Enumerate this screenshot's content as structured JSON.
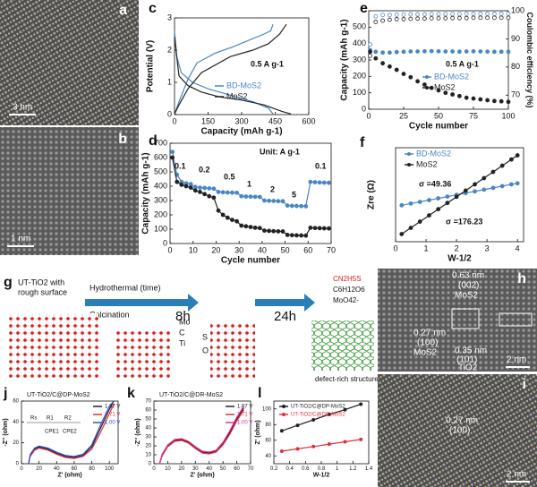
{
  "figure": {
    "panel_labels": [
      "a",
      "b",
      "c",
      "d",
      "e",
      "f",
      "g",
      "h",
      "i",
      "j",
      "k",
      "l"
    ],
    "scale_bars": [
      "3 nm",
      "1 nm",
      "2 nm",
      "2 nm"
    ],
    "schematic": {
      "start": [
        "UT-TiO2 with",
        "rough surface"
      ],
      "step1": "Hydrothermal (time)",
      "step2": "Calcination",
      "t1": "8h",
      "t2": "24h",
      "atoms": [
        "Mo",
        "C",
        "Ti",
        "S",
        "O"
      ],
      "reagents": [
        "CN2H5S",
        "C6H12O6",
        "MoO42-"
      ],
      "result": "defect-rich structure"
    },
    "hrtem_h": [
      "0.63 nm",
      "(002)",
      "MoS2",
      "0.27 nm",
      "(100)",
      "MoS2",
      "0.35 nm",
      "(101)",
      "TiO2"
    ],
    "hrtem_i": [
      "0.27 nm",
      "(100)"
    ],
    "circuit": [
      "Rs",
      "R1",
      "CPE1",
      "R2",
      "CPE2"
    ]
  },
  "chart_data": [
    {
      "type": "line",
      "xlabel": "Capacity (mAh g-1)",
      "ylabel": "Potential (V)",
      "xlim": [
        0,
        600
      ],
      "xticks": [
        0,
        150,
        300,
        450,
        600
      ],
      "ylim": [
        0,
        3
      ],
      "yticks": [
        0,
        1,
        2,
        3
      ],
      "annotations": [
        "0.5 A g-1"
      ],
      "series": [
        {
          "name": "BD-MoS2",
          "color": "#4a86c5",
          "x": [
            0,
            10,
            30,
            80,
            150,
            250,
            350,
            420,
            440,
            null,
            0,
            20,
            60,
            100,
            180,
            260,
            330,
            400,
            430,
            440
          ],
          "values": [
            2.6,
            1.8,
            1.3,
            1.0,
            0.8,
            0.6,
            0.4,
            0.2,
            0.02,
            null,
            0.02,
            0.4,
            1.1,
            1.6,
            1.9,
            2.1,
            2.3,
            2.5,
            2.6,
            2.8
          ]
        },
        {
          "name": "MoS2",
          "color": "#222222",
          "x": [
            0,
            20,
            60,
            120,
            200,
            300,
            400,
            480,
            520,
            null,
            0,
            20,
            60,
            120,
            250,
            350,
            420,
            470,
            500
          ],
          "values": [
            2.4,
            1.2,
            0.9,
            0.7,
            0.55,
            0.45,
            0.3,
            0.1,
            0.02,
            null,
            0.02,
            0.3,
            0.8,
            1.3,
            1.8,
            2.0,
            2.2,
            2.5,
            2.8
          ]
        }
      ]
    },
    {
      "type": "line",
      "xlabel": "Cycle number",
      "ylabel": "Capacity (mAh g-1)",
      "xlim": [
        0,
        70
      ],
      "xticks": [
        0,
        10,
        20,
        30,
        40,
        50,
        60,
        70
      ],
      "ylim": [
        0,
        700
      ],
      "yticks": [
        0,
        100,
        200,
        300,
        400,
        500,
        600,
        700
      ],
      "annotations": [
        "0.1",
        "0.2",
        "0.5",
        "1",
        "2",
        "5",
        "0.1",
        "Unit: A g-1"
      ],
      "series": [
        {
          "color": "#4a86c5",
          "marker": "circle",
          "x": [
            1,
            3,
            5,
            7,
            9,
            11,
            13,
            15,
            17,
            19,
            21,
            23,
            25,
            27,
            29,
            31,
            33,
            35,
            37,
            39,
            41,
            43,
            45,
            47,
            49,
            51,
            53,
            55,
            57,
            59,
            61,
            63,
            65,
            67,
            69
          ],
          "values": [
            640,
            480,
            430,
            420,
            415,
            395,
            390,
            388,
            385,
            383,
            360,
            358,
            356,
            355,
            354,
            330,
            328,
            327,
            326,
            325,
            300,
            298,
            297,
            296,
            295,
            265,
            263,
            262,
            261,
            260,
            430,
            428,
            426,
            425,
            424
          ]
        },
        {
          "color": "#222222",
          "marker": "circle",
          "x": [
            1,
            3,
            5,
            7,
            9,
            11,
            13,
            15,
            17,
            19,
            21,
            23,
            25,
            27,
            29,
            31,
            33,
            35,
            37,
            39,
            41,
            43,
            45,
            47,
            49,
            51,
            53,
            55,
            57,
            59,
            61,
            63,
            65,
            67,
            69
          ],
          "values": [
            600,
            430,
            410,
            400,
            390,
            370,
            360,
            345,
            330,
            320,
            230,
            200,
            180,
            165,
            155,
            125,
            120,
            115,
            110,
            108,
            90,
            88,
            86,
            85,
            84,
            60,
            58,
            57,
            56,
            55,
            110,
            108,
            107,
            106,
            105
          ]
        }
      ]
    },
    {
      "type": "scatter",
      "xlabel": "Cycle number",
      "ylabel": "Capacity (mAh g-1)",
      "y2label": "Coulombic efficiency (%)",
      "xlim": [
        0,
        100
      ],
      "xticks": [
        0,
        25,
        50,
        75,
        100
      ],
      "ylim": [
        0,
        600
      ],
      "yticks": [
        0,
        100,
        200,
        300,
        400,
        500
      ],
      "y2lim": [
        65,
        100
      ],
      "y2ticks": [
        70,
        80,
        90,
        100
      ],
      "annotations": [
        "0.5 A g-1"
      ],
      "series": [
        {
          "name": "BD-MoS2",
          "color": "#4a86c5",
          "marker": "circle",
          "x": [
            1,
            5,
            10,
            15,
            20,
            25,
            30,
            35,
            40,
            45,
            50,
            55,
            60,
            65,
            70,
            75,
            80,
            85,
            90,
            95,
            100
          ],
          "values": [
            360,
            350,
            345,
            345,
            348,
            350,
            352,
            352,
            353,
            354,
            353,
            352,
            352,
            351,
            352,
            353,
            352,
            351,
            350,
            350,
            350
          ]
        },
        {
          "name": "MoS2",
          "color": "#222222",
          "marker": "circle",
          "x": [
            1,
            5,
            10,
            15,
            20,
            25,
            30,
            35,
            40,
            45,
            50,
            55,
            60,
            65,
            70,
            75,
            80,
            85,
            90,
            95,
            100
          ],
          "values": [
            350,
            310,
            280,
            260,
            240,
            215,
            195,
            170,
            150,
            130,
            115,
            100,
            90,
            80,
            70,
            65,
            60,
            55,
            50,
            48,
            45
          ]
        },
        {
          "color": "#4a86c5",
          "marker": "circle",
          "axis": "y2",
          "x": [
            1,
            5,
            10,
            15,
            20,
            25,
            30,
            35,
            40,
            45,
            50,
            55,
            60,
            65,
            70,
            75,
            80,
            85,
            90,
            95,
            100
          ],
          "values": [
            88,
            98,
            98.5,
            98.5,
            98.6,
            98.6,
            98.7,
            98.7,
            98.7,
            98.8,
            98.8,
            98.8,
            98.8,
            98.8,
            98.9,
            98.9,
            98.9,
            98.9,
            98.9,
            98.9,
            98.9
          ]
        },
        {
          "color": "#222222",
          "marker": "circle",
          "axis": "y2",
          "x": [
            1,
            5,
            10,
            15,
            20,
            25,
            30,
            35,
            40,
            45,
            50,
            55,
            60,
            65,
            70,
            75,
            80,
            85,
            90,
            95,
            100
          ],
          "values": [
            84,
            96,
            96.5,
            96.8,
            97,
            97,
            97.1,
            97.2,
            97.2,
            97.3,
            97.3,
            97.3,
            97.4,
            97.4,
            97.4,
            97.5,
            97.5,
            97.5,
            97.5,
            97.5,
            97.5
          ]
        }
      ]
    },
    {
      "type": "line",
      "xlabel": "W-1/2",
      "ylabel": "Zre (Ω)",
      "xlim": [
        0,
        4.2
      ],
      "xticks": [
        0,
        1,
        2,
        3,
        4
      ],
      "ylim": [
        0,
        800
      ],
      "annotations": [
        "σ =49.36",
        "σ =176.23"
      ],
      "series": [
        {
          "name": "BD-MoS2",
          "color": "#4a86c5",
          "marker": "circle",
          "x": [
            0.2,
            0.5,
            0.8,
            1.1,
            1.4,
            1.7,
            2.0,
            2.3,
            2.6,
            2.9,
            3.2,
            3.5,
            3.8,
            4.0
          ],
          "values": [
            310,
            325,
            339,
            354,
            369,
            384,
            399,
            414,
            428,
            443,
            458,
            473,
            488,
            497
          ]
        },
        {
          "name": "MoS2",
          "color": "#222222",
          "marker": "circle",
          "x": [
            0.2,
            0.5,
            0.8,
            1.1,
            1.4,
            1.7,
            2.0,
            2.3,
            2.6,
            2.9,
            3.2,
            3.5,
            3.8,
            4.0
          ],
          "values": [
            65,
            118,
            171,
            224,
            277,
            330,
            382,
            435,
            488,
            541,
            594,
            647,
            700,
            735
          ]
        }
      ]
    },
    {
      "type": "line",
      "title": "UT-TiO2/C@DP-MoS2",
      "xlabel": "Z' (ohm)",
      "ylabel": "-Z'' (ohm)",
      "xlim": [
        0,
        110
      ],
      "xticks": [
        0,
        20,
        40,
        60,
        80,
        100
      ],
      "ylim": [
        0,
        60
      ],
      "yticks": [
        0,
        20,
        40,
        60
      ],
      "series": [
        {
          "name": "1.67 V",
          "color": "#222222",
          "x": [
            8,
            10,
            15,
            20,
            30,
            40,
            50,
            60,
            70,
            80,
            90,
            100,
            105
          ],
          "values": [
            0,
            8,
            14,
            16,
            14,
            10,
            7,
            6,
            8,
            16,
            34,
            52,
            60
          ]
        },
        {
          "name": "1.71 V",
          "color": "#e0303a",
          "x": [
            8,
            10,
            15,
            20,
            30,
            40,
            50,
            60,
            70,
            80,
            90,
            100,
            105
          ],
          "values": [
            0,
            7,
            13,
            15,
            13,
            9,
            6,
            5,
            7,
            14,
            30,
            48,
            57
          ]
        },
        {
          "name": "1.00 V",
          "color": "#3050d0",
          "x": [
            8,
            10,
            15,
            20,
            30,
            40,
            50,
            60,
            70,
            80,
            90,
            100,
            105
          ],
          "values": [
            0,
            9,
            15,
            17,
            15,
            11,
            8,
            7,
            9,
            18,
            37,
            55,
            60
          ]
        }
      ]
    },
    {
      "type": "line",
      "title": "UT-TiO2/C@DR-MoS2",
      "xlabel": "Z' (ohm)",
      "ylabel": "-Z'' (ohm)",
      "xlim": [
        0,
        70
      ],
      "xticks": [
        0,
        10,
        20,
        30,
        40,
        50,
        60,
        70
      ],
      "ylim": [
        0,
        70
      ],
      "yticks": [
        0,
        10,
        20,
        30,
        40,
        50,
        60,
        70
      ],
      "series": [
        {
          "name": "1.67 V",
          "color": "#222222",
          "x": [
            4,
            6,
            10,
            15,
            20,
            25,
            30,
            35,
            40,
            45,
            50,
            55,
            60,
            65
          ],
          "values": [
            0,
            10,
            20,
            26,
            27,
            24,
            18,
            13,
            12,
            14,
            22,
            35,
            50,
            62
          ]
        },
        {
          "name": "1.71 V",
          "color": "#e0303a",
          "x": [
            4,
            6,
            10,
            15,
            20,
            25,
            30,
            35,
            40,
            45,
            50,
            55,
            60,
            65
          ],
          "values": [
            0,
            9,
            19,
            25,
            26,
            23,
            17,
            12,
            11,
            13,
            21,
            33,
            48,
            60
          ]
        },
        {
          "name": "1.00 V",
          "color": "#e0309a",
          "x": [
            4,
            6,
            10,
            15,
            20,
            25,
            30,
            35,
            40,
            45,
            50,
            55,
            60,
            65
          ],
          "values": [
            0,
            11,
            21,
            27,
            28,
            25,
            19,
            14,
            13,
            15,
            24,
            37,
            52,
            64
          ]
        }
      ]
    },
    {
      "type": "line",
      "xlabel": "W-1/2",
      "ylabel": "Z' (ohm)",
      "xlim": [
        0.2,
        1.4
      ],
      "xticks": [
        0.2,
        0.4,
        0.6,
        0.8,
        1.0,
        1.2,
        1.4
      ],
      "ylim": [
        30,
        110
      ],
      "yticks": [
        40,
        60,
        80,
        100
      ],
      "series": [
        {
          "name": "UT-TiO2/C@DP-MoS2",
          "color": "#222222",
          "marker": "circle",
          "x": [
            0.3,
            0.5,
            0.7,
            0.9,
            1.1,
            1.3
          ],
          "values": [
            72,
            79,
            86,
            93,
            99,
            106
          ]
        },
        {
          "name": "UT-TiO2/C@DR-MoS2",
          "color": "#e0303a",
          "marker": "circle",
          "x": [
            0.3,
            0.5,
            0.7,
            0.9,
            1.1,
            1.3
          ],
          "values": [
            46,
            49,
            52,
            55,
            58,
            61
          ]
        }
      ]
    }
  ]
}
